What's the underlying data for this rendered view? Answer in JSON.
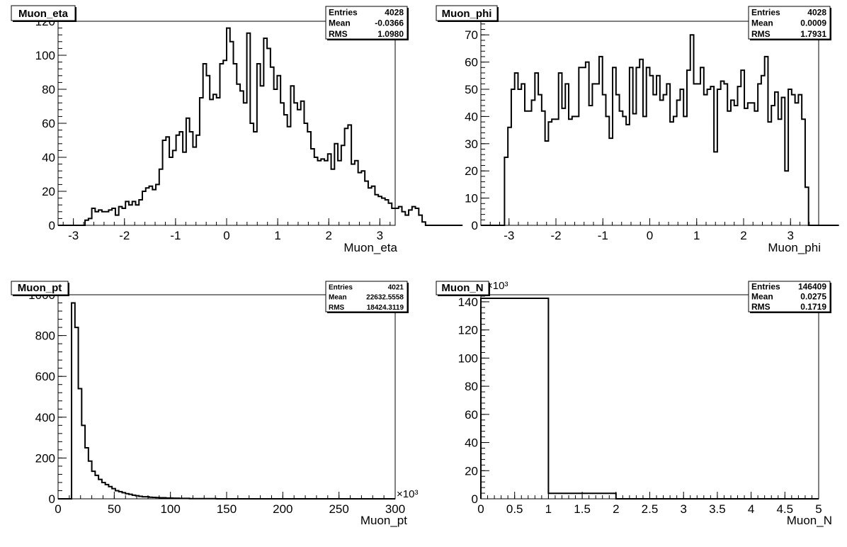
{
  "pads": [
    {
      "title": "Muon_eta",
      "stats": {
        "entries_label": "Entries",
        "entries": "4028",
        "mean_label": "Mean",
        "mean": "-0.0366",
        "rms_label": "RMS",
        "rms": "1.0980"
      }
    },
    {
      "title": "Muon_phi",
      "stats": {
        "entries_label": "Entries",
        "entries": "4028",
        "mean_label": "Mean",
        "mean": "0.0009",
        "rms_label": "RMS",
        "rms": "1.7931"
      }
    },
    {
      "title": "Muon_pt",
      "stats": {
        "entries_label": "Entries",
        "entries": "4021",
        "mean_label": "Mean",
        "mean": "22632.5558",
        "rms_label": "RMS",
        "rms": "18424.3119"
      }
    },
    {
      "title": "Muon_N",
      "stats": {
        "entries_label": "Entries",
        "entries": "146409",
        "mean_label": "Mean",
        "mean": "0.0275",
        "rms_label": "RMS",
        "rms": "0.1719"
      }
    }
  ],
  "chart_data": [
    {
      "type": "histogram",
      "title": "Muon_eta",
      "xlabel": "Muon_eta",
      "ylabel": "",
      "xlim": [
        -3.3,
        3.3
      ],
      "ylim": [
        0,
        120
      ],
      "xticks": [
        -3,
        -2,
        -1,
        0,
        1,
        2,
        3
      ],
      "yticks": [
        0,
        20,
        40,
        60,
        80,
        100,
        120
      ],
      "bin_edges_start": -3.3,
      "bin_width": 0.066,
      "values": [
        0,
        0,
        0,
        0,
        0,
        0,
        0,
        0,
        3,
        4,
        10,
        8,
        9,
        8,
        8,
        9,
        10,
        6,
        11,
        10,
        14,
        12,
        14,
        12,
        15,
        20,
        22,
        23,
        21,
        24,
        33,
        50,
        52,
        40,
        44,
        53,
        55,
        43,
        63,
        55,
        46,
        53,
        75,
        95,
        88,
        74,
        77,
        75,
        95,
        97,
        116,
        108,
        95,
        83,
        79,
        72,
        113,
        60,
        55,
        95,
        82,
        110,
        104,
        93,
        80,
        88,
        72,
        65,
        58,
        82,
        72,
        68,
        73,
        60,
        55,
        45,
        40,
        38,
        39,
        38,
        42,
        33,
        48,
        38,
        47,
        57,
        59,
        36,
        38,
        31,
        32,
        26,
        22,
        23,
        18,
        17,
        16,
        15,
        13,
        10,
        10,
        11,
        8,
        6,
        9,
        11,
        10,
        6,
        2,
        0,
        0,
        0,
        0,
        0,
        0,
        0,
        0,
        0,
        0,
        0
      ]
    },
    {
      "type": "histogram",
      "title": "Muon_phi",
      "xlabel": "Muon_phi",
      "ylabel": "",
      "xlim": [
        -3.6,
        3.6
      ],
      "ylim": [
        0,
        75
      ],
      "xticks": [
        -3,
        -2,
        -1,
        0,
        1,
        2,
        3
      ],
      "yticks": [
        0,
        10,
        20,
        30,
        40,
        50,
        60,
        70
      ],
      "bin_edges_start": -3.6,
      "bin_width": 0.072,
      "values": [
        0,
        0,
        0,
        0,
        0,
        0,
        0,
        25,
        36,
        50,
        56,
        50,
        52,
        42,
        42,
        46,
        56,
        48,
        42,
        31,
        38,
        39,
        39,
        56,
        43,
        52,
        39,
        40,
        40,
        58,
        58,
        60,
        44,
        52,
        52,
        62,
        48,
        40,
        32,
        58,
        48,
        42,
        40,
        37,
        58,
        41,
        58,
        61,
        40,
        58,
        55,
        48,
        55,
        46,
        48,
        52,
        38,
        40,
        46,
        50,
        40,
        57,
        70,
        52,
        52,
        58,
        48,
        50,
        51,
        27,
        50,
        53,
        52,
        42,
        46,
        44,
        51,
        57,
        43,
        45,
        45,
        42,
        52,
        55,
        62,
        38,
        44,
        49,
        39,
        47,
        20,
        50,
        48,
        45,
        48,
        39,
        14,
        0,
        0,
        0,
        0,
        0,
        0,
        0,
        0,
        0
      ]
    },
    {
      "type": "histogram",
      "title": "Muon_pt",
      "xlabel": "Muon_pt",
      "ylabel": "",
      "x_multiplier_label": "×10³",
      "xlim": [
        0,
        300
      ],
      "ylim": [
        0,
        1000
      ],
      "xticks": [
        0,
        50,
        100,
        150,
        200,
        250,
        300
      ],
      "yticks": [
        0,
        200,
        400,
        600,
        800,
        1000
      ],
      "bin_edges_start": 0,
      "bin_width": 3,
      "values": [
        0,
        0,
        0,
        0,
        960,
        840,
        540,
        360,
        250,
        185,
        135,
        115,
        95,
        80,
        70,
        60,
        50,
        40,
        35,
        30,
        25,
        22,
        18,
        15,
        12,
        10,
        10,
        8,
        7,
        6,
        5,
        5,
        4,
        4,
        3,
        3,
        2,
        2,
        2,
        1,
        1,
        1,
        1,
        1,
        1,
        1,
        1,
        0,
        0,
        0,
        0,
        0,
        0,
        0,
        0,
        0,
        0,
        0,
        0,
        0,
        0,
        0,
        0,
        0,
        0,
        0,
        0,
        0,
        0,
        0,
        0,
        0,
        0,
        0,
        0,
        0,
        0,
        0,
        0,
        0,
        0,
        0,
        0,
        0,
        0,
        0,
        0,
        0,
        0,
        0,
        0,
        0,
        0,
        0,
        0,
        0,
        0,
        0,
        0,
        0
      ]
    },
    {
      "type": "histogram",
      "title": "Muon_N",
      "xlabel": "Muon_N",
      "ylabel": "",
      "y_multiplier_label": "×10³",
      "xlim": [
        0,
        5
      ],
      "ylim": [
        0,
        145
      ],
      "xticks": [
        0,
        0.5,
        1,
        1.5,
        2,
        2.5,
        3,
        3.5,
        4,
        4.5,
        5
      ],
      "yticks": [
        0,
        20,
        40,
        60,
        80,
        100,
        120,
        140
      ],
      "bin_edges_start": 0,
      "bin_width": 1,
      "values": [
        142.5,
        3.9,
        0,
        0,
        0
      ]
    }
  ]
}
